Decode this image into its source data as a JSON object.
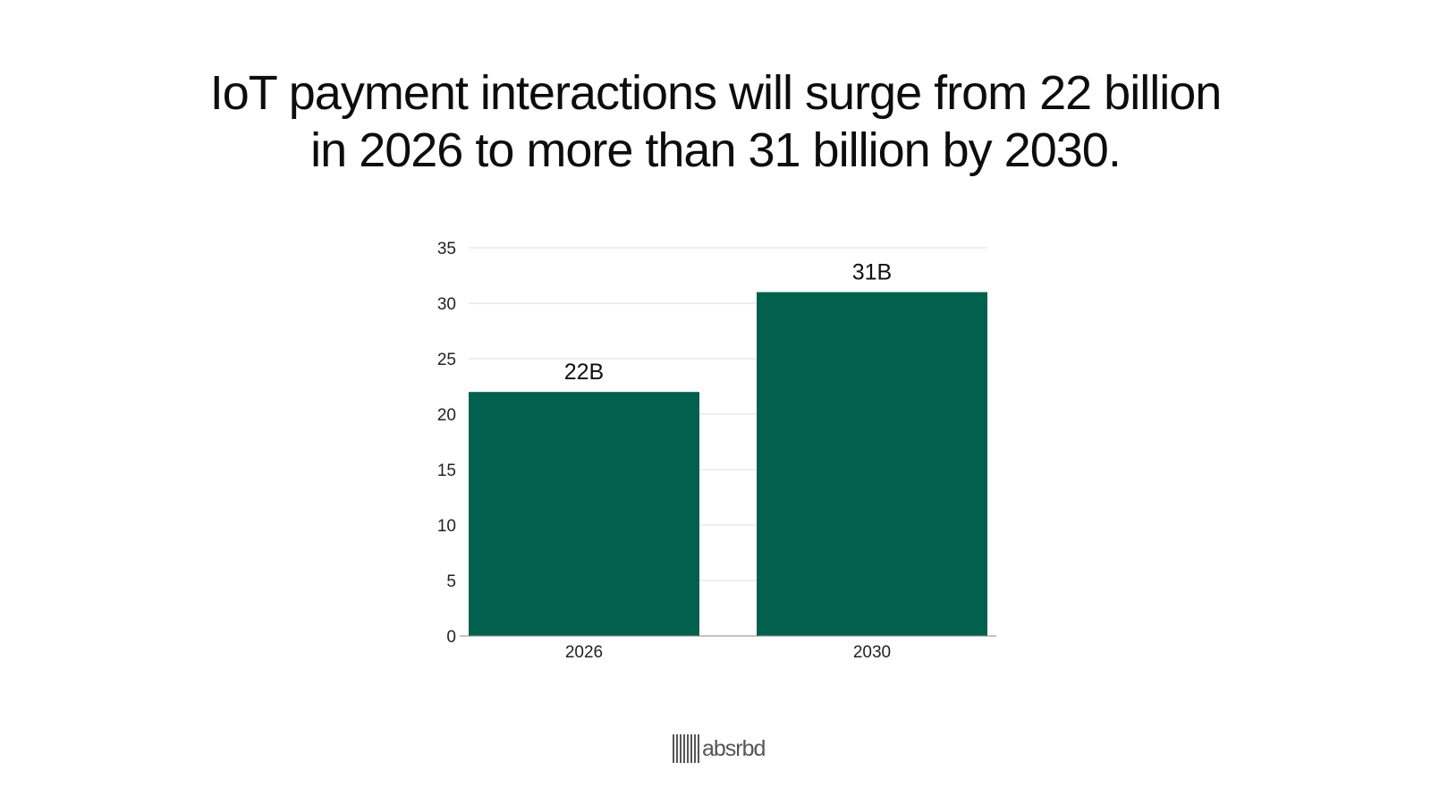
{
  "headline": {
    "line1": "IoT payment interactions will surge from 22 billion",
    "line2": "in 2026 to more than 31 billion by 2030."
  },
  "chart_data": {
    "type": "bar",
    "title": "IoT payment interactions will surge from 22 billion in 2026 to more than 31 billion by 2030.",
    "categories": [
      "2026",
      "2030"
    ],
    "values": [
      22,
      31
    ],
    "data_labels": [
      "22B",
      "31B"
    ],
    "xlabel": "",
    "ylabel": "",
    "ylim": [
      0,
      35
    ],
    "yticks": [
      0,
      5,
      10,
      15,
      20,
      25,
      30,
      35
    ],
    "grid": true,
    "legend": "none",
    "bar_color": "#02604f",
    "grid_color": "#dddddd"
  },
  "logo": {
    "text": "absrbd"
  }
}
